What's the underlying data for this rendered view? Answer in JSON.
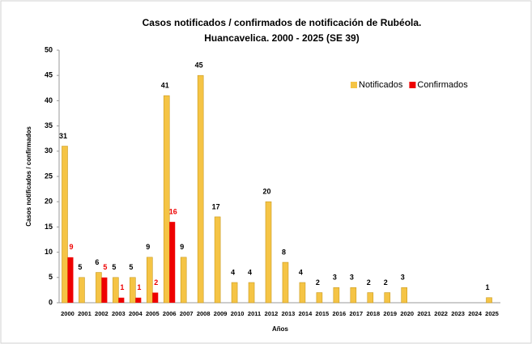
{
  "chart_data": {
    "type": "bar",
    "title": "Casos notificados / confirmados de notificación de Rubéola.",
    "subtitle": "Huancavelica. 2000 - 2025 (SE 39)",
    "x_label": "Años",
    "y_label": "Casos  notificados / confirmados",
    "categories": [
      "2000",
      "2001",
      "2002",
      "2003",
      "2004",
      "2005",
      "2006",
      "2007",
      "2008",
      "2009",
      "2010",
      "2011",
      "2012",
      "2013",
      "2014",
      "2015",
      "2016",
      "2017",
      "2018",
      "2019",
      "2020",
      "2021",
      "2022",
      "2023",
      "2024",
      "2025"
    ],
    "series": [
      {
        "name": "Notificados",
        "color": "#f5c445",
        "label_color": "#000000",
        "values": [
          31,
          5,
          6,
          5,
          5,
          9,
          41,
          9,
          45,
          17,
          4,
          4,
          20,
          8,
          4,
          2,
          3,
          3,
          2,
          2,
          3,
          null,
          null,
          null,
          null,
          1
        ]
      },
      {
        "name": "Confirmados",
        "color": "#ee0000",
        "label_color": "#ee0000",
        "values": [
          9,
          null,
          5,
          1,
          1,
          2,
          16,
          null,
          null,
          null,
          null,
          null,
          null,
          null,
          null,
          null,
          null,
          null,
          null,
          null,
          null,
          null,
          null,
          null,
          null,
          null
        ]
      }
    ],
    "ylim": [
      0,
      50
    ],
    "yticks": [
      0,
      5,
      10,
      15,
      20,
      25,
      30,
      35,
      40,
      45,
      50
    ],
    "grid": false,
    "legend": "upper right"
  }
}
